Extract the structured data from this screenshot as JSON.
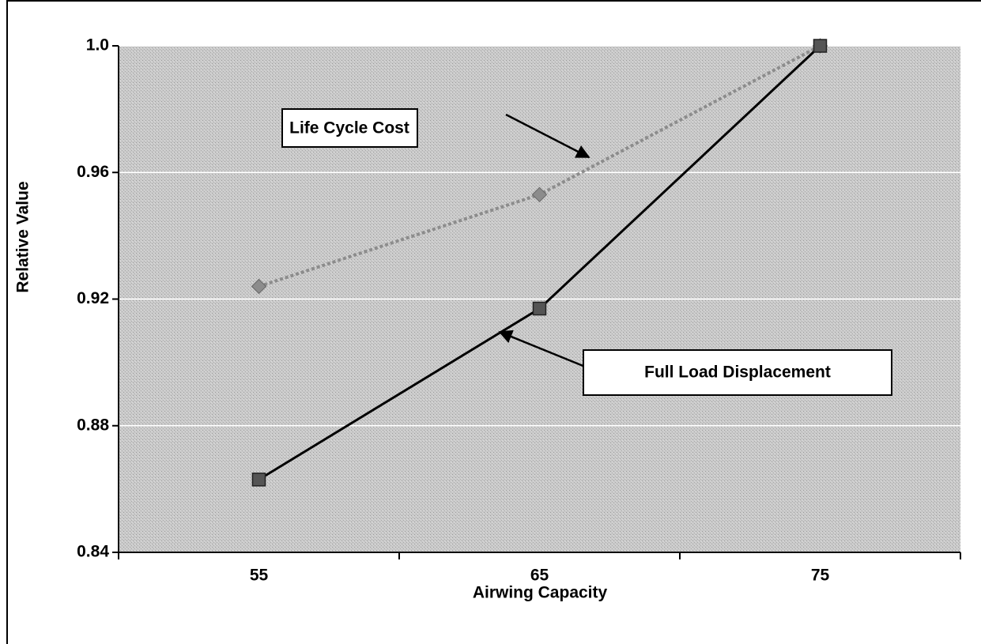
{
  "chart_data": {
    "type": "line",
    "xlabel": "Airwing Capacity",
    "ylabel": "Relative Value",
    "categories": [
      "55",
      "65",
      "75"
    ],
    "series": [
      {
        "name": "Life Cycle Cost",
        "color": "#8c8c8c",
        "values": [
          0.924,
          0.953,
          1.0
        ]
      },
      {
        "name": "Full Load Displacement",
        "color": "#000000",
        "values": [
          0.863,
          0.917,
          1.0
        ]
      }
    ],
    "ylim": [
      0.84,
      1.0
    ],
    "yticks": [
      0.84,
      0.88,
      0.92,
      0.96,
      {
        "value": 1.0,
        "label": "1.0"
      }
    ],
    "grid": true
  }
}
